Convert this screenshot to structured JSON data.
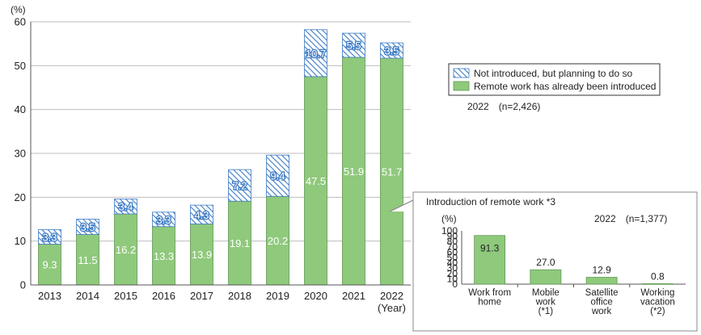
{
  "colors": {
    "introduced": "#8fc97c",
    "introduced_stroke": "#5f9a52",
    "planning": "#3d7bc4",
    "axis": "#555555",
    "grid": "#bdbdbd"
  },
  "chart_data": [
    {
      "type": "bar",
      "stacked": true,
      "ylabel": "(%)",
      "xlabel": "(Year)",
      "ylim": [
        0,
        60
      ],
      "yticks": [
        0,
        10,
        20,
        30,
        40,
        50,
        60
      ],
      "grid": true,
      "categories": [
        "2013",
        "2014",
        "2015",
        "2016",
        "2017",
        "2018",
        "2019",
        "2020",
        "2021",
        "2022"
      ],
      "series": [
        {
          "name": "Remote work has already been introduced",
          "values": [
            9.3,
            11.5,
            16.2,
            13.3,
            13.9,
            19.1,
            20.2,
            47.5,
            51.9,
            51.7
          ]
        },
        {
          "name": "Not introduced, but planning to do so",
          "values": [
            3.3,
            3.5,
            3.4,
            3.3,
            4.3,
            7.2,
            9.4,
            10.7,
            5.5,
            3.5
          ]
        }
      ],
      "legend_position": "right",
      "note": "2022　(n=2,426)"
    },
    {
      "type": "bar",
      "title": "Introduction of remote work *3",
      "ylabel": "(%)",
      "ylim": [
        0,
        100
      ],
      "yticks": [
        0,
        10,
        20,
        30,
        40,
        50,
        60,
        70,
        80,
        90,
        100
      ],
      "note": "2022　(n=1,377)",
      "categories": [
        [
          "Work from",
          "home"
        ],
        [
          "Mobile",
          "work",
          "(*1)"
        ],
        [
          "Satellite",
          "office",
          "work"
        ],
        [
          "Working",
          "vacation",
          "(*2)"
        ]
      ],
      "values": [
        91.3,
        27.0,
        12.9,
        0.8
      ],
      "value_labels": [
        "91.3",
        "27.0",
        "12.9",
        "0.8"
      ]
    }
  ]
}
